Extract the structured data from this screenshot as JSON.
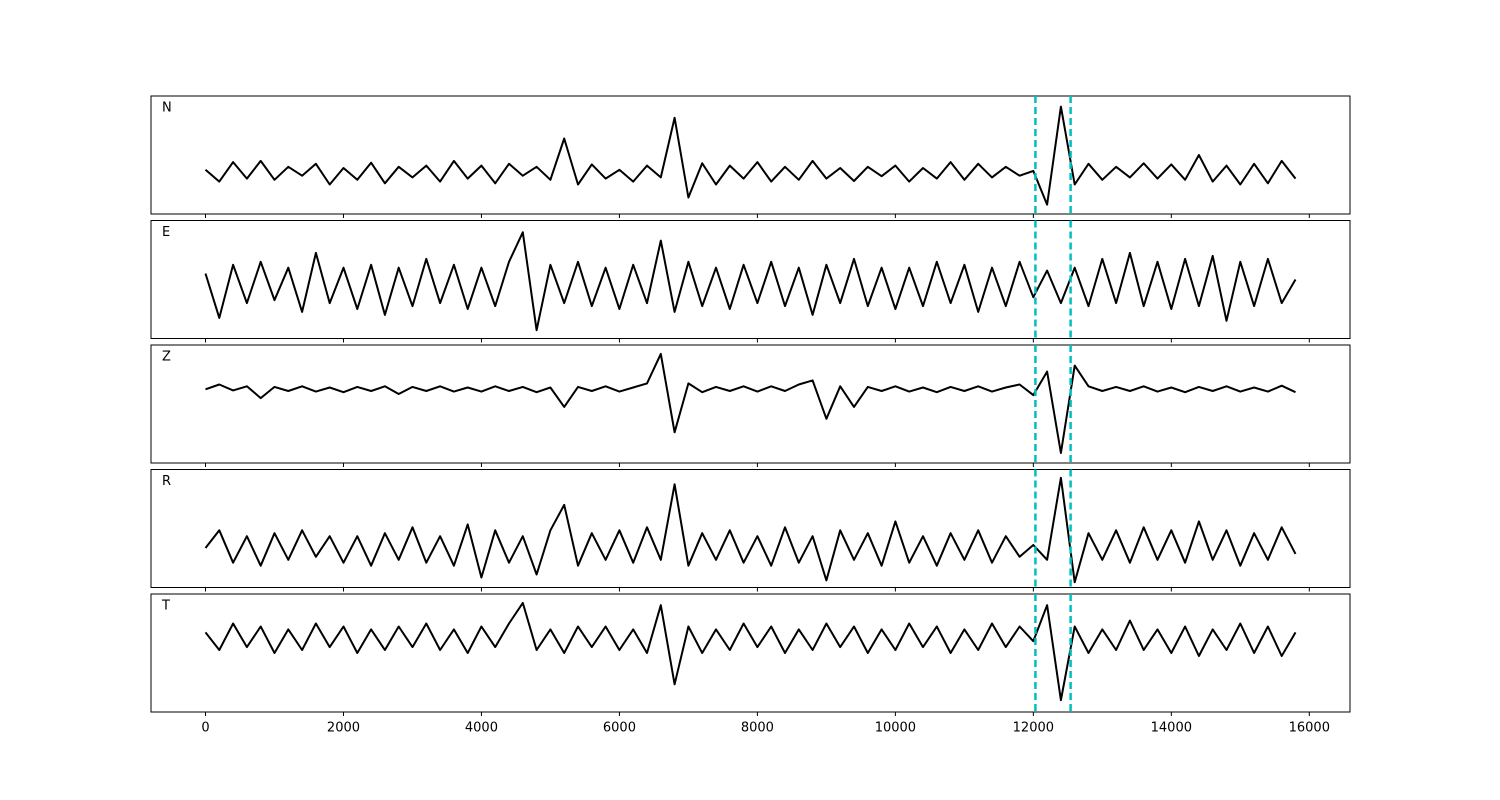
{
  "chart_data": {
    "type": "line",
    "layout": "stacked",
    "x": [
      0,
      200,
      400,
      600,
      800,
      1000,
      1200,
      1400,
      1600,
      1800,
      2000,
      2200,
      2400,
      2600,
      2800,
      3000,
      3200,
      3400,
      3600,
      3800,
      4000,
      4200,
      4400,
      4600,
      4800,
      5000,
      5200,
      5400,
      5600,
      5800,
      6000,
      6200,
      6400,
      6600,
      6800,
      7000,
      7200,
      7400,
      7600,
      7800,
      8000,
      8200,
      8400,
      8600,
      8800,
      9000,
      9200,
      9400,
      9600,
      9800,
      10000,
      10200,
      10400,
      10600,
      10800,
      11000,
      11200,
      11400,
      11600,
      11800,
      12000,
      12200,
      12400,
      12600,
      12800,
      13000,
      13200,
      13400,
      13600,
      13800,
      14000,
      14200,
      14400,
      14600,
      14800,
      15000,
      15200,
      15400,
      15600,
      15800
    ],
    "xlim": [
      -790,
      16590
    ],
    "xticks": [
      0,
      2000,
      4000,
      6000,
      8000,
      10000,
      12000,
      14000,
      16000
    ],
    "series": [
      {
        "name": "N",
        "color": "#000000",
        "ylim": [
          -0.7,
          1.3
        ],
        "values": [
          0.05,
          -0.15,
          0.18,
          -0.1,
          0.2,
          -0.12,
          0.1,
          -0.05,
          0.15,
          -0.2,
          0.08,
          -0.12,
          0.17,
          -0.18,
          0.1,
          -0.08,
          0.12,
          -0.15,
          0.2,
          -0.1,
          0.12,
          -0.18,
          0.15,
          -0.05,
          0.1,
          -0.12,
          0.58,
          -0.2,
          0.14,
          -0.1,
          0.05,
          -0.15,
          0.12,
          -0.08,
          0.93,
          -0.42,
          0.16,
          -0.2,
          0.12,
          -0.1,
          0.18,
          -0.15,
          0.1,
          -0.12,
          0.2,
          -0.1,
          0.08,
          -0.14,
          0.1,
          -0.06,
          0.12,
          -0.15,
          0.08,
          -0.1,
          0.18,
          -0.12,
          0.15,
          -0.08,
          0.1,
          -0.05,
          0.03,
          -0.54,
          1.12,
          -0.2,
          0.15,
          -0.12,
          0.1,
          -0.08,
          0.16,
          -0.1,
          0.14,
          -0.12,
          0.3,
          -0.15,
          0.12,
          -0.2,
          0.15,
          -0.18,
          0.2,
          -0.1
        ]
      },
      {
        "name": "E",
        "color": "#000000",
        "ylim": [
          -0.9,
          1.1
        ],
        "values": [
          0.2,
          -0.55,
          0.35,
          -0.3,
          0.4,
          -0.25,
          0.3,
          -0.45,
          0.55,
          -0.3,
          0.3,
          -0.4,
          0.35,
          -0.5,
          0.3,
          -0.35,
          0.45,
          -0.3,
          0.35,
          -0.4,
          0.3,
          -0.35,
          0.4,
          0.9,
          -0.76,
          0.35,
          -0.3,
          0.4,
          -0.35,
          0.3,
          -0.4,
          0.35,
          -0.3,
          0.76,
          -0.45,
          0.4,
          -0.35,
          0.3,
          -0.4,
          0.35,
          -0.3,
          0.4,
          -0.35,
          0.3,
          -0.5,
          0.35,
          -0.3,
          0.45,
          -0.35,
          0.3,
          -0.4,
          0.3,
          -0.35,
          0.4,
          -0.3,
          0.35,
          -0.45,
          0.3,
          -0.35,
          0.4,
          -0.2,
          0.25,
          -0.3,
          0.3,
          -0.35,
          0.45,
          -0.3,
          0.55,
          -0.35,
          0.4,
          -0.4,
          0.45,
          -0.35,
          0.5,
          -0.6,
          0.4,
          -0.35,
          0.45,
          -0.3,
          0.1
        ]
      },
      {
        "name": "Z",
        "color": "#000000",
        "ylim": [
          -1.25,
          0.75
        ],
        "values": [
          0.0,
          0.08,
          -0.02,
          0.05,
          -0.15,
          0.04,
          -0.03,
          0.05,
          -0.04,
          0.03,
          -0.05,
          0.04,
          -0.03,
          0.05,
          -0.08,
          0.04,
          -0.03,
          0.05,
          -0.04,
          0.03,
          -0.04,
          0.05,
          -0.03,
          0.04,
          -0.05,
          0.03,
          -0.3,
          0.04,
          -0.03,
          0.05,
          -0.04,
          0.03,
          0.1,
          0.6,
          -0.73,
          0.1,
          -0.05,
          0.04,
          -0.03,
          0.05,
          -0.04,
          0.05,
          -0.03,
          0.08,
          0.15,
          -0.5,
          0.05,
          -0.3,
          0.04,
          -0.03,
          0.05,
          -0.04,
          0.03,
          -0.05,
          0.04,
          -0.03,
          0.05,
          -0.04,
          0.03,
          0.08,
          -0.1,
          0.3,
          -1.08,
          0.4,
          0.05,
          -0.03,
          0.04,
          -0.03,
          0.05,
          -0.04,
          0.03,
          -0.05,
          0.04,
          -0.03,
          0.05,
          -0.04,
          0.03,
          -0.04,
          0.06,
          -0.05
        ]
      },
      {
        "name": "R",
        "color": "#000000",
        "ylim": [
          -0.67,
          1.33
        ],
        "values": [
          0.0,
          0.3,
          -0.25,
          0.2,
          -0.3,
          0.25,
          -0.2,
          0.3,
          -0.15,
          0.2,
          -0.25,
          0.2,
          -0.3,
          0.25,
          -0.2,
          0.35,
          -0.25,
          0.2,
          -0.3,
          0.4,
          -0.5,
          0.3,
          -0.25,
          0.2,
          -0.45,
          0.3,
          0.73,
          -0.3,
          0.25,
          -0.2,
          0.3,
          -0.25,
          0.35,
          -0.2,
          1.08,
          -0.3,
          0.25,
          -0.2,
          0.3,
          -0.25,
          0.2,
          -0.3,
          0.35,
          -0.25,
          0.2,
          -0.55,
          0.3,
          -0.2,
          0.25,
          -0.3,
          0.45,
          -0.25,
          0.2,
          -0.3,
          0.25,
          -0.2,
          0.3,
          -0.25,
          0.2,
          -0.15,
          0.05,
          -0.2,
          1.19,
          -0.58,
          0.25,
          -0.2,
          0.3,
          -0.25,
          0.35,
          -0.2,
          0.3,
          -0.25,
          0.45,
          -0.2,
          0.3,
          -0.3,
          0.25,
          -0.2,
          0.35,
          -0.1
        ]
      },
      {
        "name": "T",
        "color": "#000000",
        "ylim": [
          -1.25,
          0.75
        ],
        "values": [
          0.1,
          -0.2,
          0.25,
          -0.15,
          0.2,
          -0.25,
          0.15,
          -0.2,
          0.25,
          -0.15,
          0.2,
          -0.25,
          0.15,
          -0.2,
          0.2,
          -0.15,
          0.25,
          -0.2,
          0.15,
          -0.25,
          0.2,
          -0.15,
          0.25,
          0.6,
          -0.2,
          0.15,
          -0.25,
          0.2,
          -0.15,
          0.2,
          -0.2,
          0.15,
          -0.25,
          0.56,
          -0.78,
          0.2,
          -0.25,
          0.15,
          -0.2,
          0.25,
          -0.15,
          0.2,
          -0.25,
          0.15,
          -0.2,
          0.25,
          -0.15,
          0.2,
          -0.25,
          0.15,
          -0.2,
          0.25,
          -0.15,
          0.2,
          -0.25,
          0.15,
          -0.2,
          0.25,
          -0.15,
          0.2,
          -0.05,
          0.56,
          -1.05,
          0.2,
          -0.25,
          0.15,
          -0.2,
          0.3,
          -0.2,
          0.15,
          -0.25,
          0.2,
          -0.3,
          0.15,
          -0.2,
          0.25,
          -0.25,
          0.2,
          -0.3,
          0.1
        ]
      }
    ],
    "vlines": {
      "color": "#00bfbf",
      "values": [
        12030,
        12540
      ]
    }
  }
}
